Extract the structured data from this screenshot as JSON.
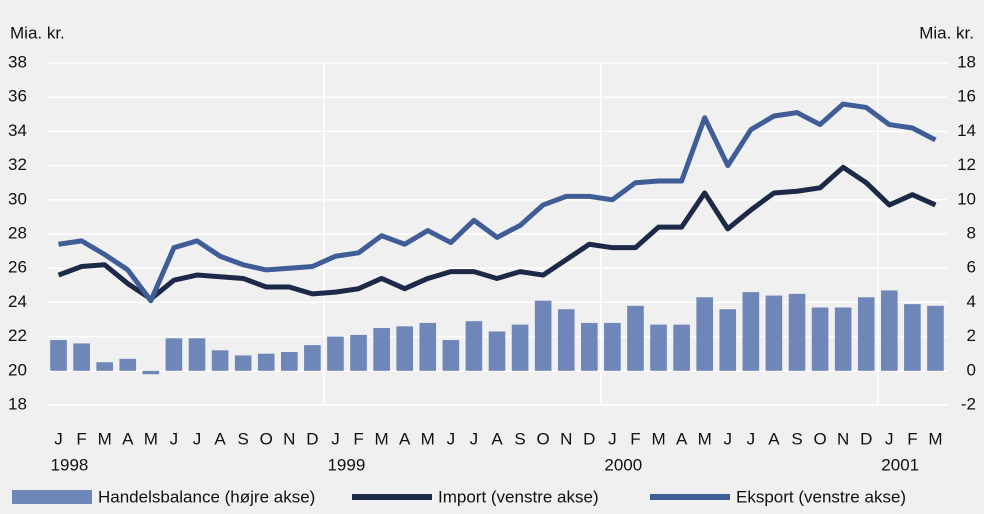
{
  "chart_data": {
    "type": "bar_line",
    "ylabel": "Mia. kr.",
    "y2label": "Mia. kr.",
    "categories": [
      "J",
      "F",
      "M",
      "A",
      "M",
      "J",
      "J",
      "A",
      "S",
      "O",
      "N",
      "D",
      "J",
      "F",
      "M",
      "A",
      "M",
      "J",
      "J",
      "A",
      "S",
      "O",
      "N",
      "D",
      "J",
      "F",
      "M",
      "A",
      "M",
      "J",
      "J",
      "A",
      "S",
      "O",
      "N",
      "D",
      "J",
      "F",
      "M"
    ],
    "years": [
      "1998",
      null,
      null,
      null,
      null,
      null,
      null,
      null,
      null,
      null,
      null,
      null,
      "1999",
      null,
      null,
      null,
      null,
      null,
      null,
      null,
      null,
      null,
      null,
      null,
      "2000",
      null,
      null,
      null,
      null,
      null,
      null,
      null,
      null,
      null,
      null,
      null,
      "2001",
      null,
      null
    ],
    "ylim": [
      18,
      38
    ],
    "yticks": [
      18,
      20,
      22,
      24,
      26,
      28,
      30,
      32,
      34,
      36,
      38
    ],
    "y2lim": [
      -2,
      18
    ],
    "y2ticks": [
      -2,
      0,
      2,
      4,
      6,
      8,
      10,
      12,
      14,
      16,
      18
    ],
    "grid": true,
    "series": [
      {
        "name": "Handelsbalance (højre akse)",
        "type": "bar",
        "axis": "y2",
        "color": "#6f86b8",
        "values": [
          1.8,
          1.6,
          0.5,
          0.7,
          -0.2,
          1.9,
          1.9,
          1.2,
          0.9,
          1.0,
          1.1,
          1.5,
          2.0,
          2.1,
          2.5,
          2.6,
          2.8,
          1.8,
          2.9,
          2.3,
          2.7,
          4.1,
          3.6,
          2.8,
          2.8,
          3.8,
          2.7,
          2.7,
          4.3,
          3.6,
          4.6,
          4.4,
          4.5,
          3.7,
          3.7,
          4.3,
          4.7,
          3.9,
          3.8
        ]
      },
      {
        "name": "Import (venstre akse)",
        "type": "line",
        "color": "#1c2a48",
        "values": [
          25.6,
          26.1,
          26.2,
          25.1,
          24.2,
          25.3,
          25.6,
          25.5,
          25.4,
          24.9,
          24.9,
          24.5,
          24.6,
          24.8,
          25.4,
          24.8,
          25.4,
          25.8,
          25.8,
          25.4,
          25.8,
          25.6,
          26.5,
          27.4,
          27.2,
          27.2,
          28.4,
          28.4,
          30.4,
          28.3,
          29.4,
          30.4,
          30.5,
          30.7,
          31.9,
          31.0,
          29.7,
          30.3,
          29.7
        ]
      },
      {
        "name": "Eksport (venstre akse)",
        "type": "line",
        "color": "#3f5d96",
        "values": [
          27.4,
          27.6,
          26.8,
          25.9,
          24.1,
          27.2,
          27.6,
          26.7,
          26.2,
          25.9,
          26.0,
          26.1,
          26.7,
          26.9,
          27.9,
          27.4,
          28.2,
          27.5,
          28.8,
          27.8,
          28.5,
          29.7,
          30.2,
          30.2,
          30.0,
          31.0,
          31.1,
          31.1,
          34.8,
          32.0,
          34.1,
          34.9,
          35.1,
          34.4,
          35.6,
          35.4,
          34.4,
          34.2,
          33.5
        ]
      }
    ]
  }
}
